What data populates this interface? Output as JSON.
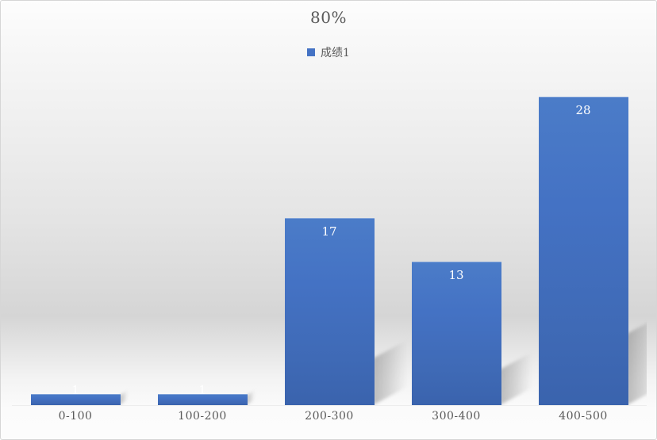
{
  "chart_data": {
    "type": "bar",
    "title": "80%",
    "categories": [
      "0-100",
      "100-200",
      "200-300",
      "300-400",
      "400-500"
    ],
    "series": [
      {
        "name": "成绩1",
        "values": [
          1,
          1,
          17,
          13,
          28
        ]
      }
    ],
    "data_labels_visible": true,
    "legend_position": "top",
    "grid": false,
    "xlabel": "",
    "ylabel": ""
  },
  "style": {
    "bar_color": "#4472C4",
    "title_color": "#595959",
    "axis_text_color": "#595959",
    "data_label_color": "#ffffff",
    "border_color": "#d6d6d6"
  }
}
